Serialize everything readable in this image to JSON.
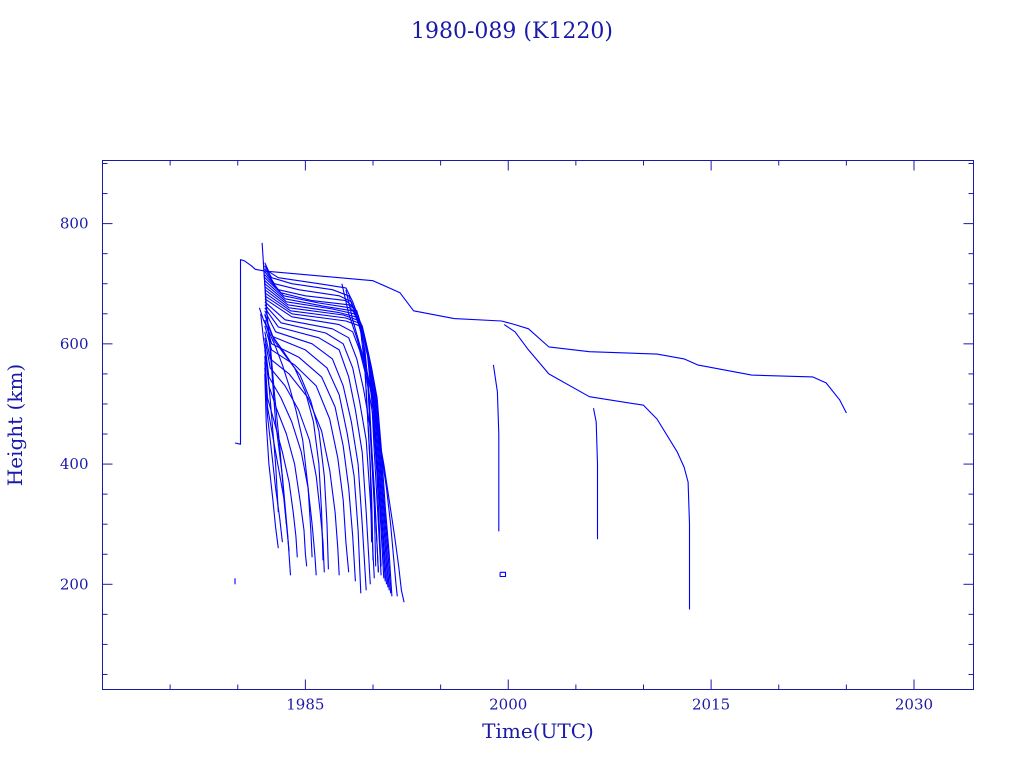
{
  "chart_data": {
    "type": "line",
    "title": "1980-089 (K1220)",
    "xlabel": "Time(UTC)",
    "ylabel": "Height (km)",
    "xlim": [
      1970.0,
      2034.4
    ],
    "ylim": [
      25,
      905
    ],
    "x_ticks": [
      1985,
      2000,
      2015,
      2030
    ],
    "x_tick_labels": [
      "1985",
      "2000",
      "2015",
      "2030"
    ],
    "y_ticks": [
      200,
      400,
      600,
      800
    ],
    "y_tick_labels": [
      "200",
      "400",
      "600",
      "800"
    ],
    "grid": false,
    "legend": "none",
    "color": "#0000ff",
    "text_color": "#1a1aa8",
    "series": [
      {
        "x": [
          1979.8,
          1979.8,
          1980.2,
          1980.2,
          1980.5,
          1981.0,
          1981.3,
          1982.0,
          1990.0,
          1992.0,
          1993.0,
          1996.0,
          1999.5,
          2000.5,
          2001.5,
          2003.0,
          2006.0,
          2011.0,
          2013.0,
          2014.0,
          2018.0,
          2022.5,
          2023.5,
          2024.5,
          2025.0
        ],
        "y": [
          435,
          435,
          433,
          740,
          738,
          730,
          724,
          721,
          705,
          685,
          655,
          642,
          638,
          632,
          625,
          595,
          587,
          583,
          575,
          565,
          548,
          545,
          535,
          507,
          485
        ]
      },
      {
        "x": [
          1999.7,
          2000.5,
          2001.5,
          2003.0,
          2006.0,
          2010.0,
          2011.0,
          2012.5,
          2013.0,
          2013.3,
          2013.4,
          2013.4
        ],
        "y": [
          632,
          620,
          590,
          550,
          512,
          498,
          475,
          420,
          395,
          370,
          300,
          158
        ]
      },
      {
        "x": [
          1998.9,
          1999.2,
          1999.3,
          1999.3
        ],
        "y": [
          565,
          520,
          450,
          288
        ]
      },
      {
        "x": [
          2006.3,
          2006.5,
          2006.6,
          2006.6
        ],
        "y": [
          493,
          470,
          400,
          275
        ]
      },
      {
        "x": [
          1979.8,
          1979.8
        ],
        "y": [
          210,
          200
        ]
      },
      {
        "x": [
          1999.4,
          1999.8,
          1999.8,
          1999.4,
          1999.4
        ],
        "y": [
          220,
          220,
          213,
          213,
          220
        ]
      },
      {
        "x": [
          1982.0,
          1982.3,
          1983.0,
          1986.0,
          1988.0,
          1988.5,
          1989.0,
          1989.3,
          1989.5,
          1989.8,
          1989.9
        ],
        "y": [
          735,
          720,
          710,
          700,
          693,
          670,
          640,
          600,
          520,
          400,
          270
        ]
      },
      {
        "x": [
          1982.0,
          1982.5,
          1984.0,
          1987.0,
          1988.2,
          1988.7,
          1989.1,
          1989.4,
          1989.6,
          1989.9,
          1990.0
        ],
        "y": [
          730,
          710,
          700,
          690,
          680,
          650,
          620,
          560,
          480,
          350,
          240
        ]
      },
      {
        "x": [
          1982.0,
          1982.7,
          1984.5,
          1987.5,
          1988.4,
          1988.9,
          1989.3,
          1989.6,
          1989.8,
          1990.1,
          1990.2
        ],
        "y": [
          725,
          700,
          690,
          680,
          670,
          640,
          600,
          540,
          450,
          330,
          230
        ]
      },
      {
        "x": [
          1982.0,
          1983.0,
          1985.0,
          1988.0,
          1988.6,
          1989.0,
          1989.4,
          1989.7,
          1989.9,
          1990.2,
          1990.4
        ],
        "y": [
          720,
          690,
          680,
          672,
          660,
          630,
          590,
          520,
          430,
          310,
          220
        ]
      },
      {
        "x": [
          1982.0,
          1983.2,
          1985.5,
          1988.2,
          1988.8,
          1989.2,
          1989.6,
          1989.9,
          1990.1,
          1990.4,
          1990.6
        ],
        "y": [
          715,
          685,
          672,
          665,
          655,
          620,
          580,
          510,
          420,
          300,
          215
        ]
      },
      {
        "x": [
          1982.0,
          1983.4,
          1986.0,
          1988.3,
          1988.9,
          1989.3,
          1989.7,
          1990.0,
          1990.3,
          1990.6,
          1990.8
        ],
        "y": [
          710,
          680,
          668,
          660,
          648,
          615,
          570,
          500,
          400,
          290,
          210
        ]
      },
      {
        "x": [
          1982.0,
          1983.5,
          1986.5,
          1988.5,
          1989.0,
          1989.4,
          1989.8,
          1990.1,
          1990.4,
          1990.7,
          1990.9
        ],
        "y": [
          705,
          675,
          662,
          655,
          640,
          605,
          560,
          480,
          380,
          280,
          205
        ]
      },
      {
        "x": [
          1982.0,
          1983.6,
          1987.0,
          1988.6,
          1989.1,
          1989.5,
          1989.9,
          1990.2,
          1990.5,
          1990.8,
          1991.0
        ],
        "y": [
          700,
          670,
          658,
          650,
          635,
          600,
          550,
          470,
          370,
          270,
          200
        ]
      },
      {
        "x": [
          1982.0,
          1983.7,
          1987.5,
          1988.7,
          1989.2,
          1989.6,
          1990.0,
          1990.3,
          1990.6,
          1990.9,
          1991.1
        ],
        "y": [
          695,
          665,
          652,
          645,
          630,
          590,
          540,
          460,
          360,
          265,
          195
        ]
      },
      {
        "x": [
          1982.0,
          1983.8,
          1987.8,
          1988.8,
          1989.3,
          1989.7,
          1990.1,
          1990.4,
          1990.7,
          1991.0,
          1991.2
        ],
        "y": [
          690,
          660,
          648,
          640,
          620,
          580,
          530,
          450,
          350,
          260,
          190
        ]
      },
      {
        "x": [
          1982.0,
          1983.9,
          1988.0,
          1988.9,
          1989.4,
          1989.8,
          1990.2,
          1990.5,
          1990.8,
          1991.1,
          1991.3
        ],
        "y": [
          685,
          655,
          643,
          635,
          610,
          570,
          520,
          440,
          340,
          255,
          185
        ]
      },
      {
        "x": [
          1982.0,
          1984.0,
          1988.0,
          1989.0,
          1989.5,
          1989.9,
          1990.3,
          1990.6,
          1990.9,
          1991.2,
          1991.4
        ],
        "y": [
          680,
          650,
          638,
          630,
          600,
          560,
          510,
          430,
          330,
          250,
          180
        ]
      },
      {
        "x": [
          1982.0,
          1984.0,
          1987.5,
          1988.5,
          1989.0,
          1989.5,
          1990.0,
          1990.3,
          1990.6
        ],
        "y": [
          675,
          645,
          632,
          620,
          590,
          545,
          480,
          380,
          230
        ]
      },
      {
        "x": [
          1982.0,
          1983.5,
          1987.0,
          1988.2,
          1988.8,
          1989.3,
          1989.8,
          1990.1,
          1990.4
        ],
        "y": [
          670,
          640,
          625,
          610,
          575,
          525,
          460,
          360,
          220
        ]
      },
      {
        "x": [
          1982.0,
          1983.2,
          1986.5,
          1987.8,
          1988.5,
          1989.0,
          1989.5,
          1989.8,
          1990.1
        ],
        "y": [
          665,
          635,
          618,
          600,
          560,
          505,
          440,
          340,
          210
        ]
      },
      {
        "x": [
          1982.0,
          1983.0,
          1986.0,
          1987.5,
          1988.2,
          1988.7,
          1989.2,
          1989.5,
          1989.8
        ],
        "y": [
          660,
          628,
          610,
          590,
          545,
          490,
          420,
          320,
          200
        ]
      },
      {
        "x": [
          1982.0,
          1982.8,
          1985.5,
          1987.0,
          1987.8,
          1988.4,
          1988.9,
          1989.2,
          1989.5
        ],
        "y": [
          655,
          620,
          600,
          575,
          530,
          470,
          400,
          300,
          190
        ]
      },
      {
        "x": [
          1982.0,
          1982.6,
          1985.0,
          1986.6,
          1987.5,
          1988.1,
          1988.6,
          1988.9,
          1989.1
        ],
        "y": [
          648,
          612,
          590,
          560,
          515,
          450,
          380,
          290,
          185
        ]
      },
      {
        "x": [
          1982.0,
          1982.5,
          1984.5,
          1986.2,
          1987.2,
          1987.8,
          1988.2,
          1988.5,
          1988.7
        ],
        "y": [
          640,
          600,
          578,
          545,
          495,
          430,
          360,
          280,
          205
        ]
      },
      {
        "x": [
          1982.0,
          1982.5,
          1984.2,
          1985.8,
          1986.8,
          1987.4,
          1987.8,
          1988.0,
          1988.2
        ],
        "y": [
          630,
          590,
          565,
          530,
          475,
          410,
          340,
          270,
          220
        ]
      },
      {
        "x": [
          1982.0,
          1982.4,
          1983.8,
          1985.2,
          1986.2,
          1986.8,
          1987.2,
          1987.4,
          1987.5
        ],
        "y": [
          620,
          575,
          550,
          510,
          455,
          390,
          320,
          260,
          215
        ]
      },
      {
        "x": [
          1982.0,
          1982.4,
          1983.5,
          1984.5,
          1985.3,
          1985.8,
          1986.1,
          1986.3,
          1986.4
        ],
        "y": [
          610,
          560,
          530,
          490,
          440,
          380,
          320,
          270,
          220
        ]
      },
      {
        "x": [
          1982.0,
          1982.3,
          1983.2,
          1984.0,
          1984.7,
          1985.2,
          1985.5,
          1985.7,
          1985.8
        ],
        "y": [
          600,
          545,
          510,
          470,
          420,
          360,
          300,
          250,
          215
        ]
      },
      {
        "x": [
          1982.0,
          1982.3,
          1982.9,
          1983.6,
          1984.2,
          1984.6,
          1984.9,
          1985.0,
          1985.1
        ],
        "y": [
          590,
          530,
          490,
          450,
          400,
          340,
          290,
          250,
          230
        ]
      },
      {
        "x": [
          1982.0,
          1982.2,
          1982.7,
          1983.3,
          1983.8,
          1984.1,
          1984.3,
          1984.4
        ],
        "y": [
          580,
          510,
          470,
          420,
          370,
          320,
          280,
          245
        ]
      },
      {
        "x": [
          1982.0,
          1982.2,
          1982.6,
          1983.0,
          1983.4,
          1983.6,
          1983.8
        ],
        "y": [
          570,
          495,
          445,
          395,
          345,
          300,
          255
        ]
      },
      {
        "x": [
          1982.0,
          1982.2,
          1982.5,
          1982.8,
          1983.1,
          1983.3
        ],
        "y": [
          560,
          480,
          420,
          360,
          310,
          270
        ]
      },
      {
        "x": [
          1982.0,
          1982.1,
          1982.3,
          1982.6,
          1982.8,
          1983.0
        ],
        "y": [
          550,
          470,
          400,
          340,
          295,
          260
        ]
      },
      {
        "x": [
          1981.8,
          1982.0,
          1982.2,
          1982.5,
          1982.8,
          1983.3,
          1983.7,
          1983.9
        ],
        "y": [
          768,
          700,
          640,
          560,
          470,
          380,
          280,
          215
        ]
      },
      {
        "x": [
          1981.9,
          1982.1,
          1982.4,
          1982.7,
          1983.1,
          1983.4,
          1983.6
        ],
        "y": [
          735,
          660,
          600,
          520,
          430,
          350,
          300
        ]
      },
      {
        "x": [
          1981.7,
          1981.9,
          1982.2,
          1982.5,
          1982.8,
          1983.0
        ],
        "y": [
          650,
          610,
          560,
          480,
          400,
          320
        ]
      },
      {
        "x": [
          1981.6,
          1981.9,
          1982.3,
          1982.8,
          1983.3,
          1983.8,
          1984.3,
          1984.8,
          1985.2,
          1985.4,
          1985.5
        ],
        "y": [
          660,
          640,
          620,
          595,
          565,
          530,
          490,
          440,
          360,
          290,
          245
        ]
      },
      {
        "x": [
          1982.0,
          1982.5,
          1983.3,
          1984.2,
          1985.0,
          1985.6,
          1986.0,
          1986.2,
          1986.3
        ],
        "y": [
          650,
          615,
          590,
          560,
          520,
          470,
          400,
          320,
          240
        ]
      },
      {
        "x": [
          1982.1,
          1982.7,
          1983.6,
          1984.6,
          1985.4,
          1986.0,
          1986.4,
          1986.6,
          1986.7
        ],
        "y": [
          640,
          605,
          578,
          548,
          505,
          455,
          380,
          300,
          225
        ]
      },
      {
        "x": [
          1987.7,
          1988.2,
          1988.8,
          1989.3,
          1989.8,
          1990.2,
          1990.6,
          1991.0,
          1991.3,
          1991.5,
          1991.7,
          1991.8
        ],
        "y": [
          700,
          650,
          610,
          570,
          525,
          470,
          420,
          360,
          300,
          250,
          200,
          180
        ]
      },
      {
        "x": [
          1988.0,
          1988.5,
          1989.0,
          1989.5,
          1990.0,
          1990.4,
          1990.8,
          1991.2,
          1991.6,
          1991.9,
          1992.1,
          1992.3
        ],
        "y": [
          690,
          640,
          600,
          560,
          510,
          450,
          400,
          340,
          280,
          230,
          190,
          170
        ]
      }
    ]
  }
}
